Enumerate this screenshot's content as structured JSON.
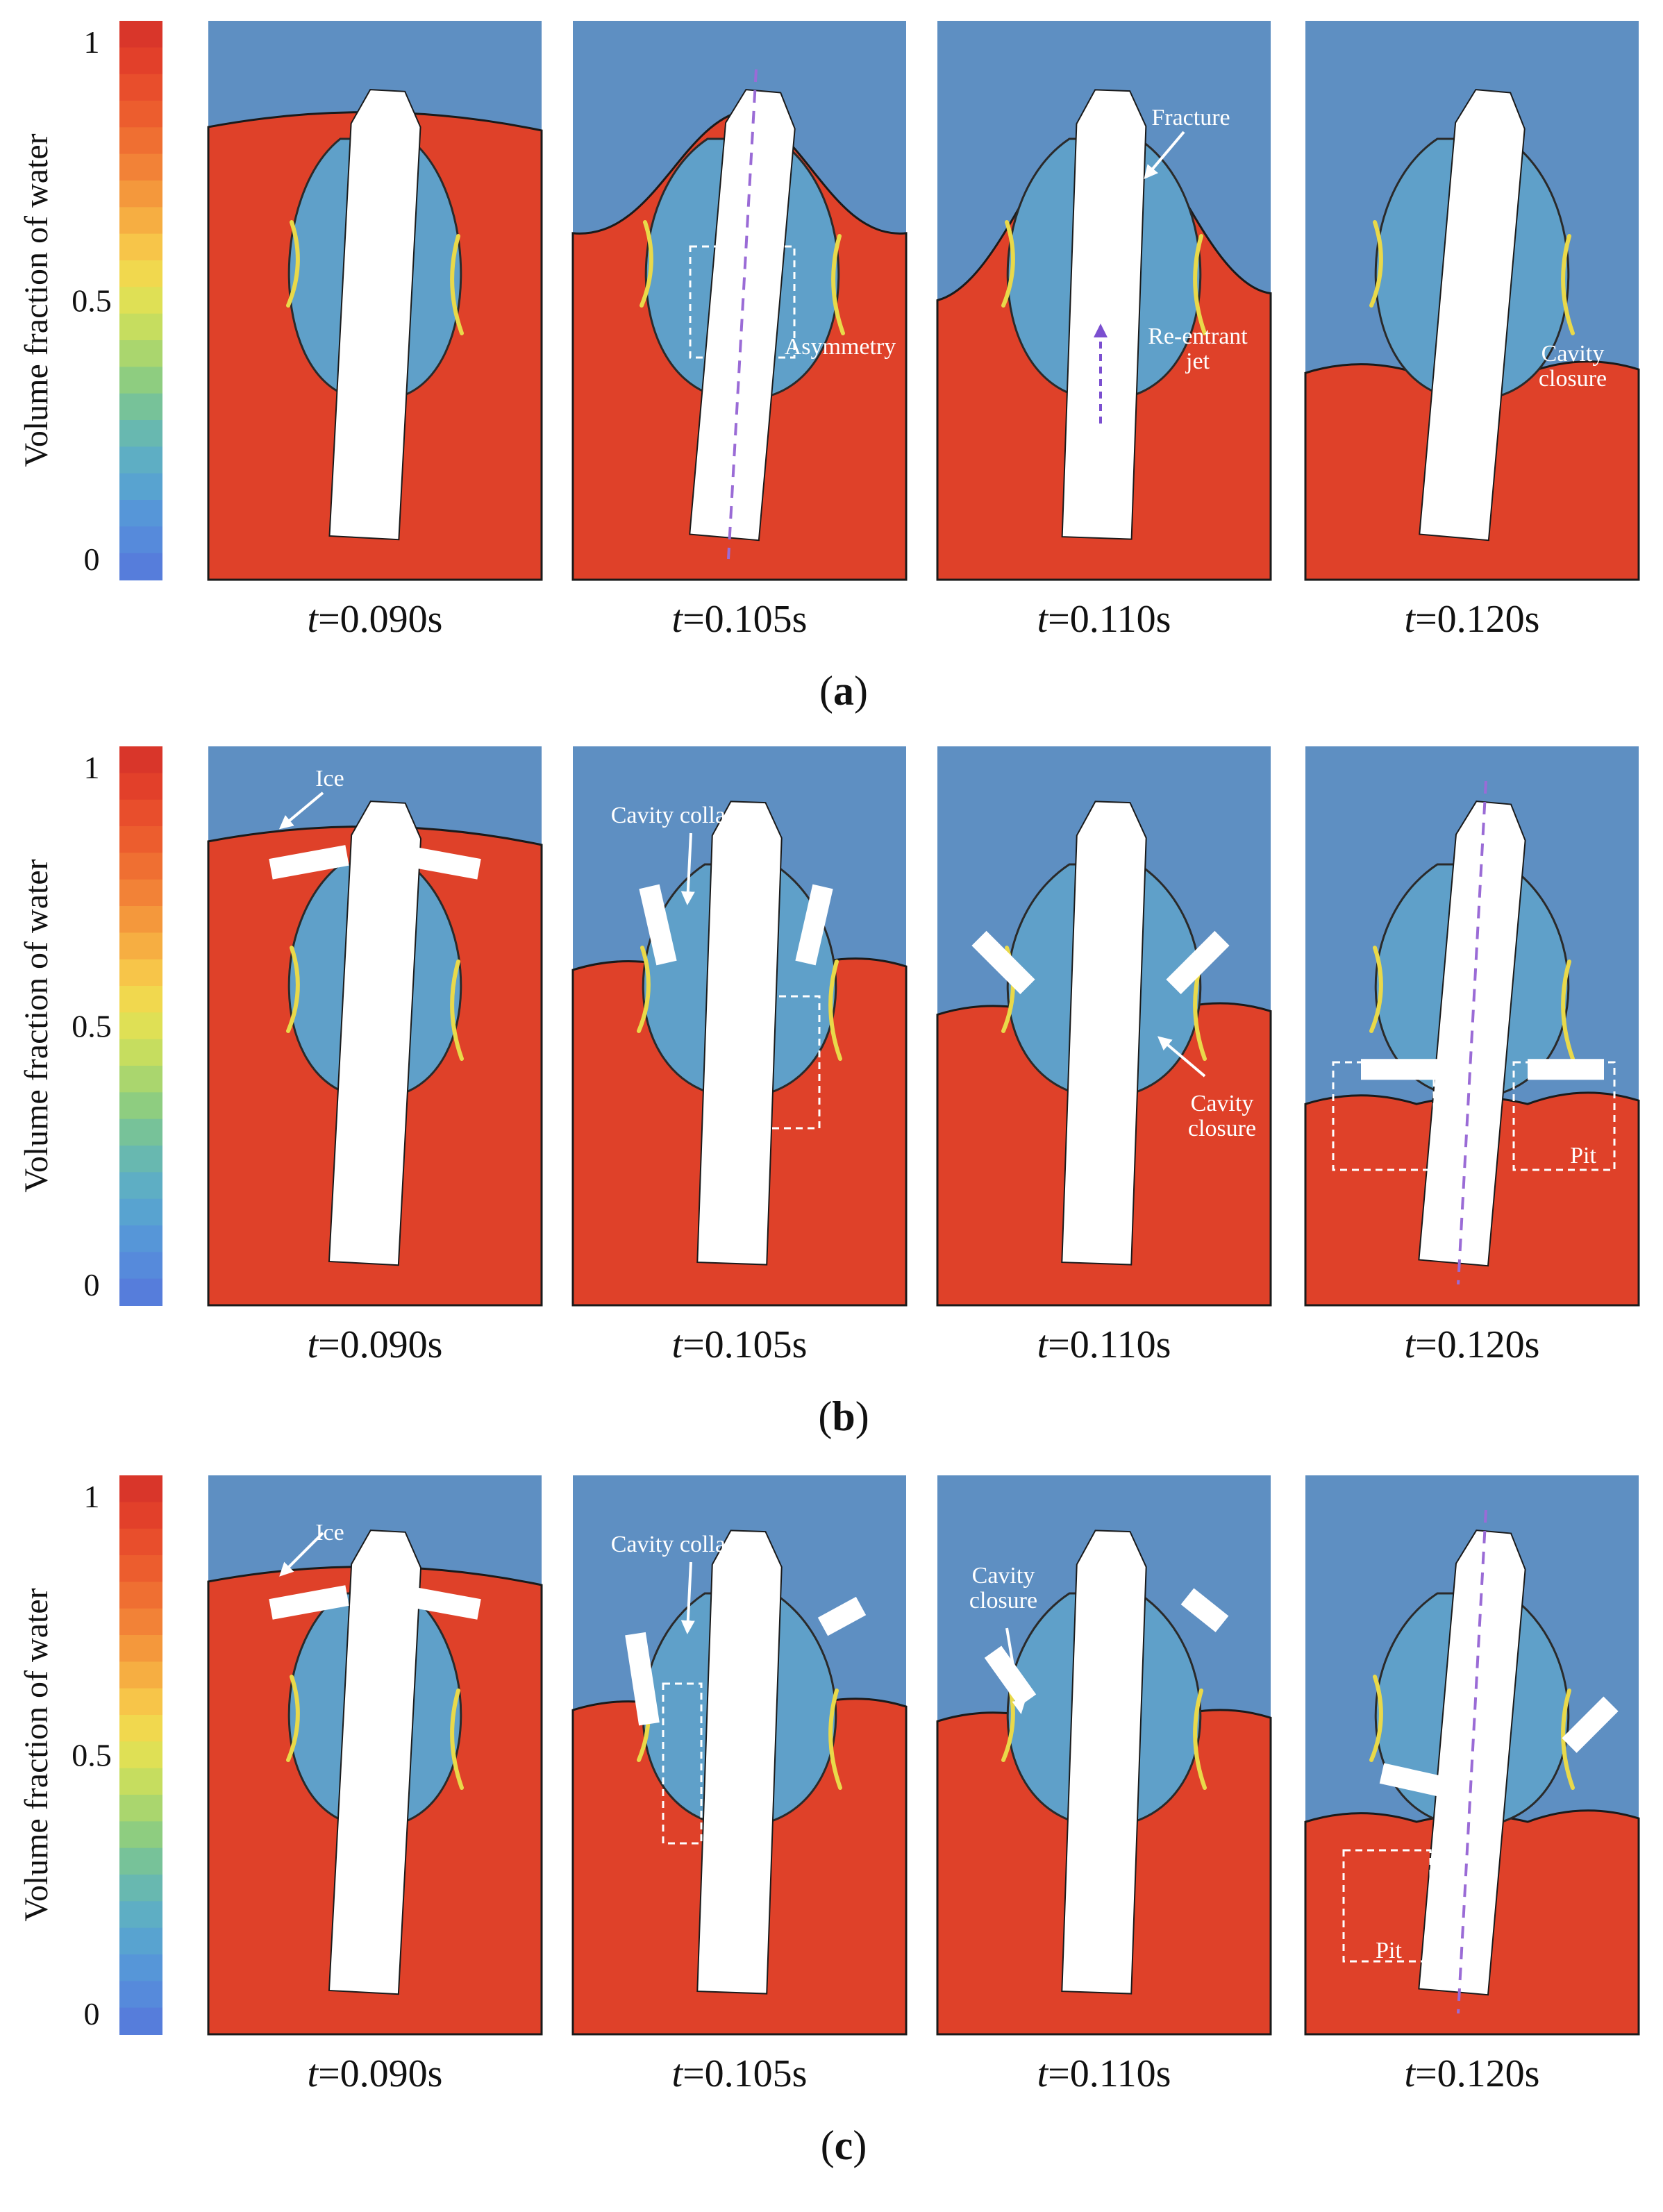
{
  "colorbar": {
    "title": "Volume fraction of water",
    "ticks": [
      "1",
      "0.5",
      "0"
    ],
    "colors": [
      "#d9362a",
      "#e2402a",
      "#e84e2c",
      "#ec5d2e",
      "#ef6f32",
      "#f28237",
      "#f4983c",
      "#f6ae42",
      "#f7c549",
      "#f1d84e",
      "#dfe055",
      "#c6dd5f",
      "#aad66e",
      "#8ecd80",
      "#77c299",
      "#68b8b0",
      "#5eaec4",
      "#58a3d0",
      "#5696d8",
      "#568adb",
      "#567ddb"
    ]
  },
  "colors": {
    "water": "#df4129",
    "air": "#5e8fc2",
    "vehicle": "#ffffff",
    "axis_marker": "#9a6bd6",
    "annotation": "#ffffff"
  },
  "rows": [
    {
      "label": "a",
      "panels": [
        {
          "time": "0.090s",
          "water_level": 0.81,
          "annotations": []
        },
        {
          "time": "0.105s",
          "water_level": 0.62,
          "annotations": [
            "Asymmetry"
          ]
        },
        {
          "time": "0.110s",
          "water_level": 0.5,
          "annotations": [
            "Fracture",
            "Re-entrant jet"
          ]
        },
        {
          "time": "0.120s",
          "water_level": 0.37,
          "annotations": [
            "Cavity closure"
          ]
        }
      ]
    },
    {
      "label": "b",
      "panels": [
        {
          "time": "0.090s",
          "water_level": 0.83,
          "annotations": [
            "Ice"
          ]
        },
        {
          "time": "0.105s",
          "water_level": 0.6,
          "annotations": [
            "Cavity collapse"
          ]
        },
        {
          "time": "0.110s",
          "water_level": 0.52,
          "annotations": [
            "Cavity closure"
          ]
        },
        {
          "time": "0.120s",
          "water_level": 0.36,
          "annotations": [
            "Pit"
          ]
        }
      ]
    },
    {
      "label": "c",
      "panels": [
        {
          "time": "0.090s",
          "water_level": 0.81,
          "annotations": [
            "Ice"
          ]
        },
        {
          "time": "0.105s",
          "water_level": 0.58,
          "annotations": [
            "Cavity collapse"
          ]
        },
        {
          "time": "0.110s",
          "water_level": 0.56,
          "annotations": [
            "Cavity closure"
          ]
        },
        {
          "time": "0.120s",
          "water_level": 0.38,
          "annotations": [
            "Pit"
          ]
        }
      ]
    }
  ]
}
